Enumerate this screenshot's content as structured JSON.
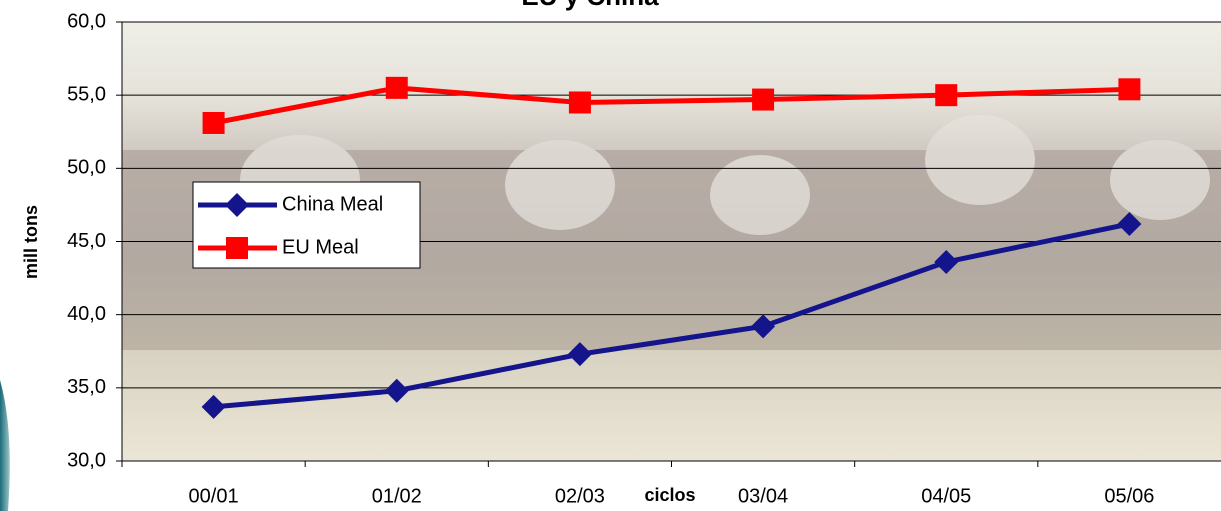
{
  "chart_data": {
    "type": "line",
    "title": "EU y China",
    "x_label": "ciclos",
    "y_label": "mill tons",
    "categories": [
      "00/01",
      "01/02",
      "02/03",
      "03/04",
      "04/05",
      "05/06"
    ],
    "series": [
      {
        "name": "China Meal",
        "color": "#14148c",
        "marker": "diamond",
        "values": [
          33.7,
          34.8,
          37.3,
          39.2,
          43.6,
          46.2
        ]
      },
      {
        "name": "EU Meal",
        "color": "#ff0000",
        "marker": "square",
        "values": [
          53.1,
          55.5,
          54.5,
          54.7,
          55.0,
          55.4
        ]
      }
    ],
    "ylim": [
      30,
      60
    ],
    "yticks": [
      {
        "value": 30,
        "label": "30,0"
      },
      {
        "value": 35,
        "label": "35,0"
      },
      {
        "value": 40,
        "label": "40,0"
      },
      {
        "value": 45,
        "label": "45,0"
      },
      {
        "value": 50,
        "label": "50,0"
      },
      {
        "value": 55,
        "label": "55,0"
      },
      {
        "value": 60,
        "label": "60,0"
      }
    ],
    "grid": true
  }
}
